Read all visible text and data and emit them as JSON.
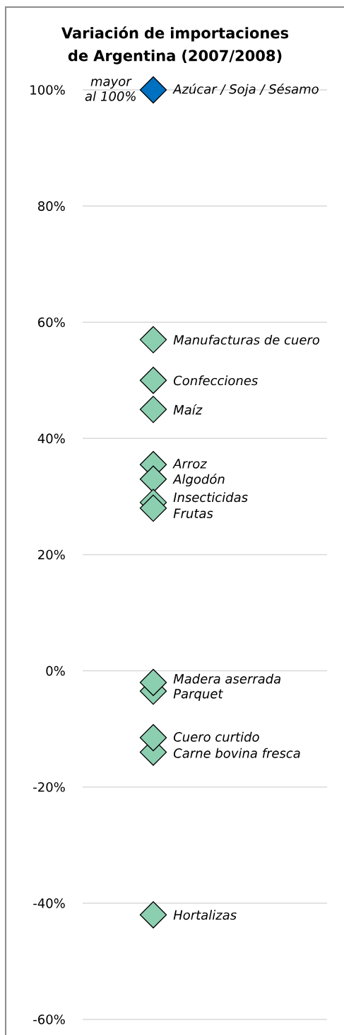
{
  "chart_data": {
    "type": "scatter",
    "title": "Variación de importaciones de Argentina (2007/2008)",
    "categories": [
      null
    ],
    "series": [
      {
        "name": "Azúcar / Soja / Sésamo",
        "color": "#0070c0",
        "values": [
          100
        ]
      },
      {
        "name": "Manufacturas de cuero",
        "color": "#8ccfb0",
        "values": [
          57
        ]
      },
      {
        "name": "Confecciones",
        "color": "#8ccfb0",
        "values": [
          50
        ]
      },
      {
        "name": "Maíz",
        "color": "#8ccfb0",
        "values": [
          45
        ]
      },
      {
        "name": "Arroz",
        "color": "#8ccfb0",
        "values": [
          35.5
        ]
      },
      {
        "name": "Algodón",
        "color": "#8ccfb0",
        "values": [
          33
        ]
      },
      {
        "name": "Insecticidas",
        "color": "#8ccfb0",
        "values": [
          29
        ]
      },
      {
        "name": "Frutas",
        "color": "#8ccfb0",
        "values": [
          28
        ]
      },
      {
        "name": "Parquet",
        "color": "#8ccfb0",
        "values": [
          -3.5
        ]
      },
      {
        "name": "Madera aserrada",
        "color": "#8ccfb0",
        "values": [
          -2
        ]
      },
      {
        "name": "Carne bovina fresca",
        "color": "#8ccfb0",
        "values": [
          -14
        ]
      },
      {
        "name": "Cuero curtido",
        "color": "#8ccfb0",
        "values": [
          -11.5
        ]
      },
      {
        "name": "Hortalizas",
        "color": "#8ccfb0",
        "values": [
          -42
        ]
      }
    ],
    "annotations": [
      "mayor al 100%"
    ],
    "ylim": [
      -60,
      100
    ],
    "yticks": [
      {
        "value": -60,
        "label": "-60%"
      },
      {
        "value": -40,
        "label": "-40%"
      },
      {
        "value": -20,
        "label": "-20%"
      },
      {
        "value": 0,
        "label": "0%"
      },
      {
        "value": 20,
        "label": "20%"
      },
      {
        "value": 40,
        "label": "40%"
      },
      {
        "value": 60,
        "label": "60%"
      },
      {
        "value": 80,
        "label": "80%"
      },
      {
        "value": 100,
        "label": "100%"
      }
    ],
    "grid": "y",
    "marker": "diamond",
    "tick_labels": "y"
  }
}
